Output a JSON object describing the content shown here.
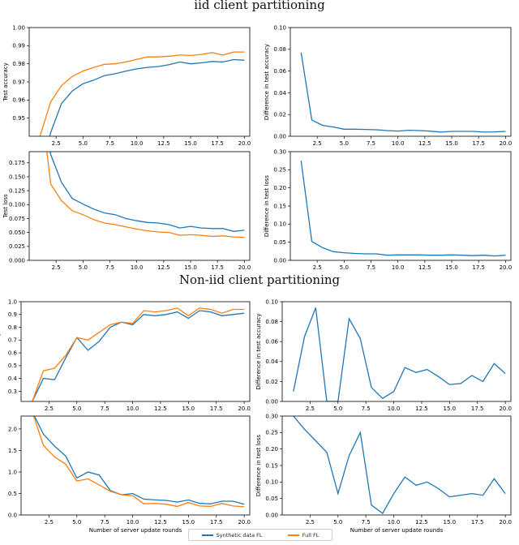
{
  "section_titles": {
    "iid": "iid client partitioning",
    "noniid": "Non-iid client partitioning"
  },
  "legend": {
    "synthetic": "Synthetic data FL",
    "full": "Full FL"
  },
  "colors": {
    "synthetic": "#1f77b4",
    "full": "#ff7f0e"
  },
  "chart_data": [
    {
      "id": "iid-acc",
      "type": "line",
      "ylabel": "Test accuracy",
      "xlabel": "",
      "xlim": [
        0,
        20.5
      ],
      "ylim": [
        0.94,
        1.0
      ],
      "xticks": [
        "2.5",
        "5.0",
        "7.5",
        "10.0",
        "12.5",
        "15.0",
        "17.5",
        "20.0"
      ],
      "yticks": [
        "0.95",
        "0.96",
        "0.97",
        "0.98",
        "0.99",
        "1.00"
      ],
      "series": [
        {
          "key": "synthetic",
          "x": [
            1,
            2,
            3,
            4,
            5,
            6,
            7,
            8,
            9,
            10,
            11,
            12,
            13,
            14,
            15,
            16,
            17,
            18,
            19,
            20
          ],
          "y": [
            0.92,
            0.942,
            0.958,
            0.965,
            0.969,
            0.971,
            0.9735,
            0.9745,
            0.976,
            0.9772,
            0.978,
            0.9785,
            0.9795,
            0.981,
            0.98,
            0.9805,
            0.9813,
            0.981,
            0.9823,
            0.982
          ]
        },
        {
          "key": "full",
          "x": [
            1,
            2,
            3,
            4,
            5,
            6,
            7,
            8,
            9,
            10,
            11,
            12,
            13,
            14,
            15,
            16,
            17,
            18,
            19,
            20
          ],
          "y": [
            0.94,
            0.959,
            0.968,
            0.973,
            0.976,
            0.978,
            0.9797,
            0.98,
            0.981,
            0.9825,
            0.9838,
            0.9838,
            0.9842,
            0.9848,
            0.9846,
            0.9852,
            0.9862,
            0.9848,
            0.9865,
            0.9865
          ]
        }
      ]
    },
    {
      "id": "iid-acc-diff",
      "type": "line",
      "ylabel": "Difference in test accuracy",
      "xlabel": "",
      "xlim": [
        0,
        20.5
      ],
      "ylim": [
        0,
        0.1
      ],
      "xticks": [
        "2.5",
        "5.0",
        "7.5",
        "10.0",
        "12.5",
        "15.0",
        "17.5",
        "20.0"
      ],
      "yticks": [
        "0.00",
        "0.02",
        "0.04",
        "0.06",
        "0.08",
        "0.10"
      ],
      "series": [
        {
          "key": "synthetic",
          "x": [
            1,
            2,
            3,
            4,
            5,
            6,
            7,
            8,
            9,
            10,
            11,
            12,
            13,
            14,
            15,
            16,
            17,
            18,
            19,
            20
          ],
          "y": [
            0.077,
            0.015,
            0.01,
            0.0085,
            0.0065,
            0.0065,
            0.0063,
            0.006,
            0.0052,
            0.0048,
            0.0055,
            0.0052,
            0.0047,
            0.0038,
            0.0045,
            0.0045,
            0.0045,
            0.0038,
            0.004,
            0.0045
          ]
        }
      ]
    },
    {
      "id": "iid-loss",
      "type": "line",
      "ylabel": "Test loss",
      "xlabel": "",
      "xlim": [
        0,
        20.5
      ],
      "ylim": [
        0,
        0.195
      ],
      "xticks": [
        "2.5",
        "5.0",
        "7.5",
        "10.0",
        "12.5",
        "15.0",
        "17.5",
        "20.0"
      ],
      "yticks": [
        "0.000",
        "0.025",
        "0.050",
        "0.075",
        "0.100",
        "0.125",
        "0.150",
        "0.175"
      ],
      "series": [
        {
          "key": "synthetic",
          "x": [
            1,
            2,
            3,
            4,
            5,
            6,
            7,
            8,
            9,
            10,
            11,
            12,
            13,
            14,
            15,
            16,
            17,
            18,
            19,
            20
          ],
          "y": [
            0.3,
            0.19,
            0.14,
            0.111,
            0.101,
            0.092,
            0.085,
            0.082,
            0.075,
            0.071,
            0.068,
            0.067,
            0.064,
            0.058,
            0.061,
            0.058,
            0.057,
            0.057,
            0.052,
            0.054
          ]
        },
        {
          "key": "full",
          "x": [
            1,
            2,
            3,
            4,
            5,
            6,
            7,
            8,
            9,
            10,
            11,
            12,
            13,
            14,
            15,
            16,
            17,
            18,
            19,
            20
          ],
          "y": [
            0.3,
            0.137,
            0.107,
            0.089,
            0.082,
            0.073,
            0.067,
            0.064,
            0.06,
            0.056,
            0.053,
            0.051,
            0.05,
            0.045,
            0.046,
            0.045,
            0.043,
            0.044,
            0.042,
            0.041
          ]
        }
      ]
    },
    {
      "id": "iid-loss-diff",
      "type": "line",
      "ylabel": "Difference in test loss",
      "xlabel": "",
      "xlim": [
        0,
        20.5
      ],
      "ylim": [
        0,
        0.3
      ],
      "xticks": [
        "2.5",
        "5.0",
        "7.5",
        "10.0",
        "12.5",
        "15.0",
        "17.5",
        "20.0"
      ],
      "yticks": [
        "0.00",
        "0.05",
        "0.10",
        "0.15",
        "0.20",
        "0.25",
        "0.30"
      ],
      "series": [
        {
          "key": "synthetic",
          "x": [
            1,
            2,
            3,
            4,
            5,
            6,
            7,
            8,
            9,
            10,
            11,
            12,
            13,
            14,
            15,
            16,
            17,
            18,
            19,
            20
          ],
          "y": [
            0.275,
            0.052,
            0.035,
            0.024,
            0.021,
            0.019,
            0.018,
            0.018,
            0.014,
            0.015,
            0.015,
            0.015,
            0.014,
            0.014,
            0.015,
            0.014,
            0.013,
            0.014,
            0.012,
            0.014
          ]
        }
      ]
    },
    {
      "id": "noniid-acc",
      "type": "line",
      "ylabel": "Test accuracy",
      "xlabel": "",
      "xlim": [
        0,
        20.5
      ],
      "ylim": [
        0.22,
        1.0
      ],
      "xticks": [
        "2.5",
        "5.0",
        "7.5",
        "10.0",
        "12.5",
        "15.0",
        "17.5",
        "20.0"
      ],
      "yticks": [
        "0.3",
        "0.4",
        "0.5",
        "0.6",
        "0.7",
        "0.8",
        "0.9",
        "1.0"
      ],
      "series": [
        {
          "key": "synthetic",
          "x": [
            1,
            2,
            3,
            4,
            5,
            6,
            7,
            8,
            9,
            10,
            11,
            12,
            13,
            14,
            15,
            16,
            17,
            18,
            19,
            20
          ],
          "y": [
            0.22,
            0.4,
            0.39,
            0.56,
            0.72,
            0.62,
            0.69,
            0.8,
            0.84,
            0.82,
            0.9,
            0.89,
            0.9,
            0.92,
            0.87,
            0.93,
            0.92,
            0.89,
            0.9,
            0.91
          ]
        },
        {
          "key": "full",
          "x": [
            1,
            2,
            3,
            4,
            5,
            6,
            7,
            8,
            9,
            10,
            11,
            12,
            13,
            14,
            15,
            16,
            17,
            18,
            19,
            20
          ],
          "y": [
            0.22,
            0.46,
            0.48,
            0.58,
            0.72,
            0.7,
            0.76,
            0.82,
            0.84,
            0.83,
            0.93,
            0.92,
            0.93,
            0.95,
            0.89,
            0.95,
            0.94,
            0.91,
            0.94,
            0.94
          ]
        }
      ]
    },
    {
      "id": "noniid-acc-diff",
      "type": "line",
      "ylabel": "Difference in test accuracy",
      "xlabel": "",
      "xlim": [
        0,
        20.5
      ],
      "ylim": [
        0,
        0.1
      ],
      "xticks": [
        "2.5",
        "5.0",
        "7.5",
        "10.0",
        "12.5",
        "15.0",
        "17.5",
        "20.0"
      ],
      "yticks": [
        "0.00",
        "0.02",
        "0.04",
        "0.06",
        "0.08",
        "0.10"
      ],
      "series": [
        {
          "key": "synthetic",
          "x": [
            1,
            2,
            3,
            4,
            5,
            6,
            7,
            8,
            9,
            10,
            11,
            12,
            13,
            14,
            15,
            16,
            17,
            18,
            19,
            20
          ],
          "y": [
            0.01,
            0.065,
            0.094,
            0.0,
            0.0,
            0.083,
            0.063,
            0.014,
            0.003,
            0.01,
            0.034,
            0.029,
            0.032,
            0.025,
            0.017,
            0.018,
            0.026,
            0.02,
            0.038,
            0.028
          ]
        }
      ]
    },
    {
      "id": "noniid-loss",
      "type": "line",
      "ylabel": "Test loss",
      "xlabel": "Number of server update rounds",
      "xlim": [
        0,
        20.5
      ],
      "ylim": [
        0,
        2.3
      ],
      "xticks": [
        "2.5",
        "5.0",
        "7.5",
        "10.0",
        "12.5",
        "15.0",
        "17.5",
        "20.0"
      ],
      "yticks": [
        "0.0",
        "0.5",
        "1.0",
        "1.5",
        "2.0"
      ],
      "series": [
        {
          "key": "synthetic",
          "x": [
            1,
            2,
            3,
            4,
            5,
            6,
            7,
            8,
            9,
            10,
            11,
            12,
            13,
            14,
            15,
            16,
            17,
            18,
            19,
            20
          ],
          "y": [
            2.4,
            1.88,
            1.6,
            1.37,
            0.86,
            1.0,
            0.93,
            0.57,
            0.47,
            0.5,
            0.37,
            0.35,
            0.34,
            0.3,
            0.35,
            0.27,
            0.26,
            0.32,
            0.32,
            0.25
          ]
        },
        {
          "key": "full",
          "x": [
            1,
            2,
            3,
            4,
            5,
            6,
            7,
            8,
            9,
            10,
            11,
            12,
            13,
            14,
            15,
            16,
            17,
            18,
            19,
            20
          ],
          "y": [
            2.4,
            1.62,
            1.35,
            1.18,
            0.79,
            0.84,
            0.7,
            0.55,
            0.47,
            0.45,
            0.26,
            0.27,
            0.25,
            0.2,
            0.29,
            0.21,
            0.2,
            0.27,
            0.21,
            0.19
          ]
        }
      ]
    },
    {
      "id": "noniid-loss-diff",
      "type": "line",
      "ylabel": "Difference in test loss",
      "xlabel": "Number of server update rounds",
      "xlim": [
        0,
        20.5
      ],
      "ylim": [
        0,
        0.3
      ],
      "xticks": [
        "2.5",
        "5.0",
        "7.5",
        "10.0",
        "12.5",
        "15.0",
        "17.5",
        "20.0"
      ],
      "yticks": [
        "0.00",
        "0.05",
        "0.10",
        "0.15",
        "0.20",
        "0.25",
        "0.30"
      ],
      "series": [
        {
          "key": "synthetic",
          "x": [
            1,
            2,
            3,
            4,
            5,
            6,
            7,
            8,
            9,
            10,
            11,
            12,
            13,
            14,
            15,
            16,
            17,
            18,
            19,
            20
          ],
          "y": [
            0.3,
            0.26,
            0.225,
            0.19,
            0.065,
            0.18,
            0.25,
            0.03,
            0.005,
            0.065,
            0.115,
            0.09,
            0.1,
            0.08,
            0.055,
            0.06,
            0.065,
            0.06,
            0.11,
            0.065
          ]
        }
      ]
    }
  ]
}
